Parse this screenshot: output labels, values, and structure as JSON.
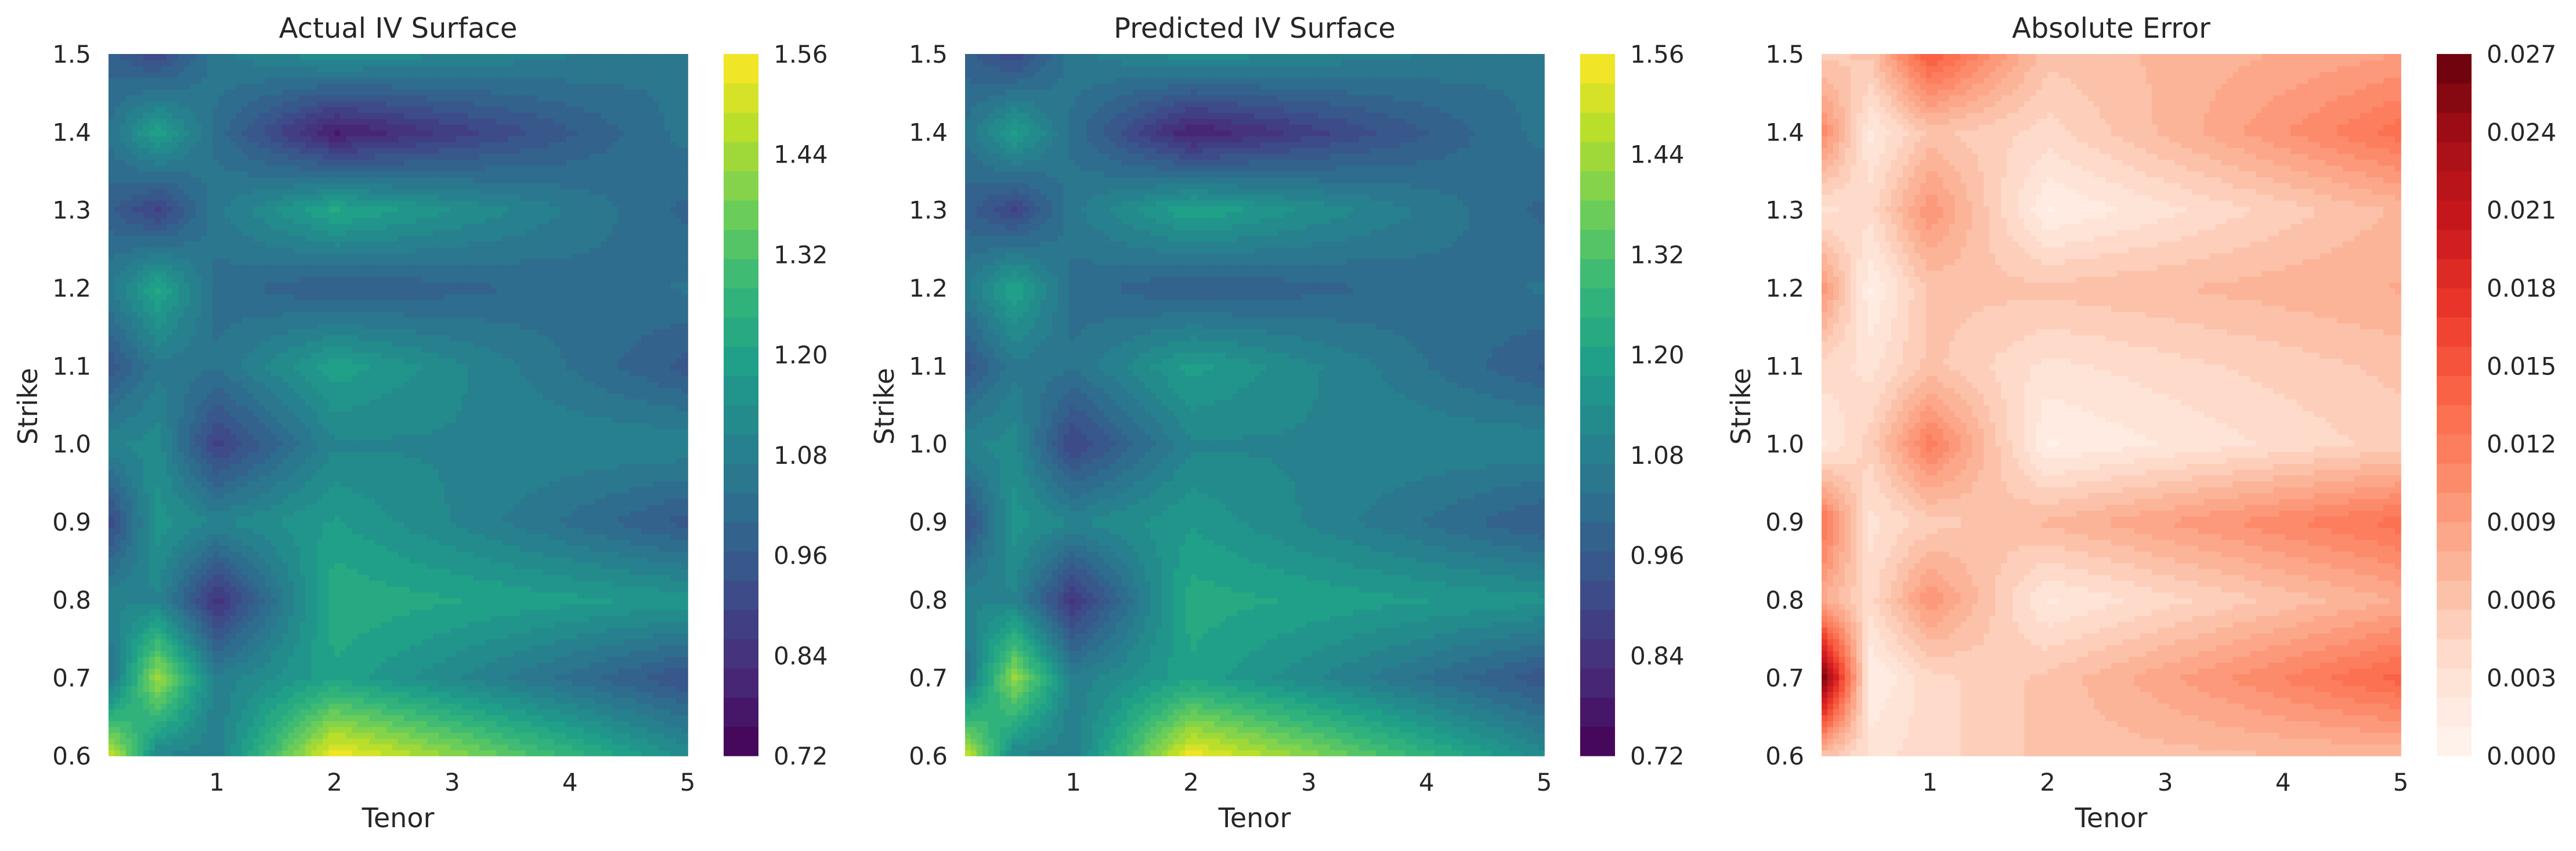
{
  "chart_data": [
    {
      "type": "heatmap",
      "subtype": "filled-contour",
      "title": "Actual IV Surface",
      "xlabel": "Tenor",
      "ylabel": "Strike",
      "x_ticks": [
        "1",
        "2",
        "3",
        "4",
        "5"
      ],
      "y_ticks": [
        "0.6",
        "0.7",
        "0.8",
        "0.9",
        "1.0",
        "1.1",
        "1.2",
        "1.3",
        "1.4",
        "1.5"
      ],
      "xlim": [
        0.08,
        5
      ],
      "ylim": [
        0.6,
        1.5
      ],
      "colormap": "viridis",
      "colorbar": {
        "min": 0.72,
        "max": 1.56,
        "ticks": [
          "0.72",
          "0.84",
          "0.96",
          "1.08",
          "1.20",
          "1.32",
          "1.44",
          "1.56"
        ]
      },
      "grid": false,
      "x": [
        0.08,
        0.5,
        1,
        2,
        5
      ],
      "y": [
        0.6,
        0.7,
        0.8,
        0.9,
        1.0,
        1.1,
        1.2,
        1.3,
        1.4,
        1.5
      ],
      "z": [
        [
          1.52,
          1.1,
          1.08,
          1.56,
          1.13
        ],
        [
          1.02,
          1.44,
          1.08,
          1.2,
          0.93
        ],
        [
          1.1,
          1.1,
          0.84,
          1.24,
          1.16
        ],
        [
          0.9,
          1.16,
          1.1,
          1.18,
          0.95
        ],
        [
          1.1,
          1.12,
          0.88,
          1.1,
          1.1
        ],
        [
          0.94,
          1.06,
          1.04,
          1.2,
          0.95
        ],
        [
          1.06,
          1.22,
          1.02,
          0.96,
          1.04
        ],
        [
          0.98,
          0.88,
          1.06,
          1.22,
          0.99
        ],
        [
          1.04,
          1.2,
          1.02,
          0.78,
          1.05
        ],
        [
          0.98,
          0.9,
          1.06,
          1.14,
          1.04
        ]
      ]
    },
    {
      "type": "heatmap",
      "subtype": "filled-contour",
      "title": "Predicted IV Surface",
      "xlabel": "Tenor",
      "ylabel": "Strike",
      "x_ticks": [
        "1",
        "2",
        "3",
        "4",
        "5"
      ],
      "y_ticks": [
        "0.6",
        "0.7",
        "0.8",
        "0.9",
        "1.0",
        "1.1",
        "1.2",
        "1.3",
        "1.4",
        "1.5"
      ],
      "xlim": [
        0.08,
        5
      ],
      "ylim": [
        0.6,
        1.5
      ],
      "colormap": "viridis",
      "colorbar": {
        "min": 0.72,
        "max": 1.56,
        "ticks": [
          "0.72",
          "0.84",
          "0.96",
          "1.08",
          "1.20",
          "1.32",
          "1.44",
          "1.56"
        ]
      },
      "grid": false,
      "x": [
        0.08,
        0.5,
        1,
        2,
        5
      ],
      "y": [
        0.6,
        0.7,
        0.8,
        0.9,
        1.0,
        1.1,
        1.2,
        1.3,
        1.4,
        1.5
      ],
      "z": [
        [
          1.51,
          1.1,
          1.08,
          1.55,
          1.12
        ],
        [
          1.03,
          1.43,
          1.08,
          1.2,
          0.94
        ],
        [
          1.1,
          1.1,
          0.85,
          1.23,
          1.15
        ],
        [
          0.91,
          1.16,
          1.1,
          1.17,
          0.96
        ],
        [
          1.1,
          1.12,
          0.89,
          1.1,
          1.1
        ],
        [
          0.94,
          1.06,
          1.04,
          1.19,
          0.96
        ],
        [
          1.06,
          1.21,
          1.02,
          0.96,
          1.04
        ],
        [
          0.98,
          0.89,
          1.06,
          1.21,
          0.99
        ],
        [
          1.04,
          1.19,
          1.02,
          0.79,
          1.05
        ],
        [
          0.98,
          0.9,
          1.06,
          1.13,
          1.04
        ]
      ]
    },
    {
      "type": "heatmap",
      "subtype": "filled-contour",
      "title": "Absolute Error",
      "xlabel": "Tenor",
      "ylabel": "Strike",
      "x_ticks": [
        "1",
        "2",
        "3",
        "4",
        "5"
      ],
      "y_ticks": [
        "0.6",
        "0.7",
        "0.8",
        "0.9",
        "1.0",
        "1.1",
        "1.2",
        "1.3",
        "1.4",
        "1.5"
      ],
      "xlim": [
        0.08,
        5
      ],
      "ylim": [
        0.6,
        1.5
      ],
      "colormap": "reds",
      "colorbar": {
        "min": 0.0,
        "max": 0.027,
        "ticks": [
          "0.000",
          "0.003",
          "0.006",
          "0.009",
          "0.012",
          "0.015",
          "0.018",
          "0.021",
          "0.024",
          "0.027"
        ]
      },
      "grid": false,
      "x": [
        0.08,
        0.5,
        1,
        2,
        5
      ],
      "y": [
        0.6,
        0.7,
        0.8,
        0.9,
        1.0,
        1.1,
        1.2,
        1.3,
        1.4,
        1.5
      ],
      "z": [
        [
          0.006,
          0.003,
          0.004,
          0.006,
          0.007
        ],
        [
          0.027,
          0.001,
          0.004,
          0.006,
          0.014
        ],
        [
          0.008,
          0.004,
          0.01,
          0.002,
          0.008
        ],
        [
          0.013,
          0.003,
          0.005,
          0.007,
          0.013
        ],
        [
          0.002,
          0.005,
          0.012,
          0.001,
          0.005
        ],
        [
          0.004,
          0.003,
          0.006,
          0.003,
          0.006
        ],
        [
          0.01,
          0.001,
          0.006,
          0.006,
          0.008
        ],
        [
          0.003,
          0.004,
          0.01,
          0.001,
          0.007
        ],
        [
          0.011,
          0.002,
          0.006,
          0.004,
          0.013
        ],
        [
          0.005,
          0.006,
          0.015,
          0.006,
          0.009
        ]
      ]
    }
  ]
}
